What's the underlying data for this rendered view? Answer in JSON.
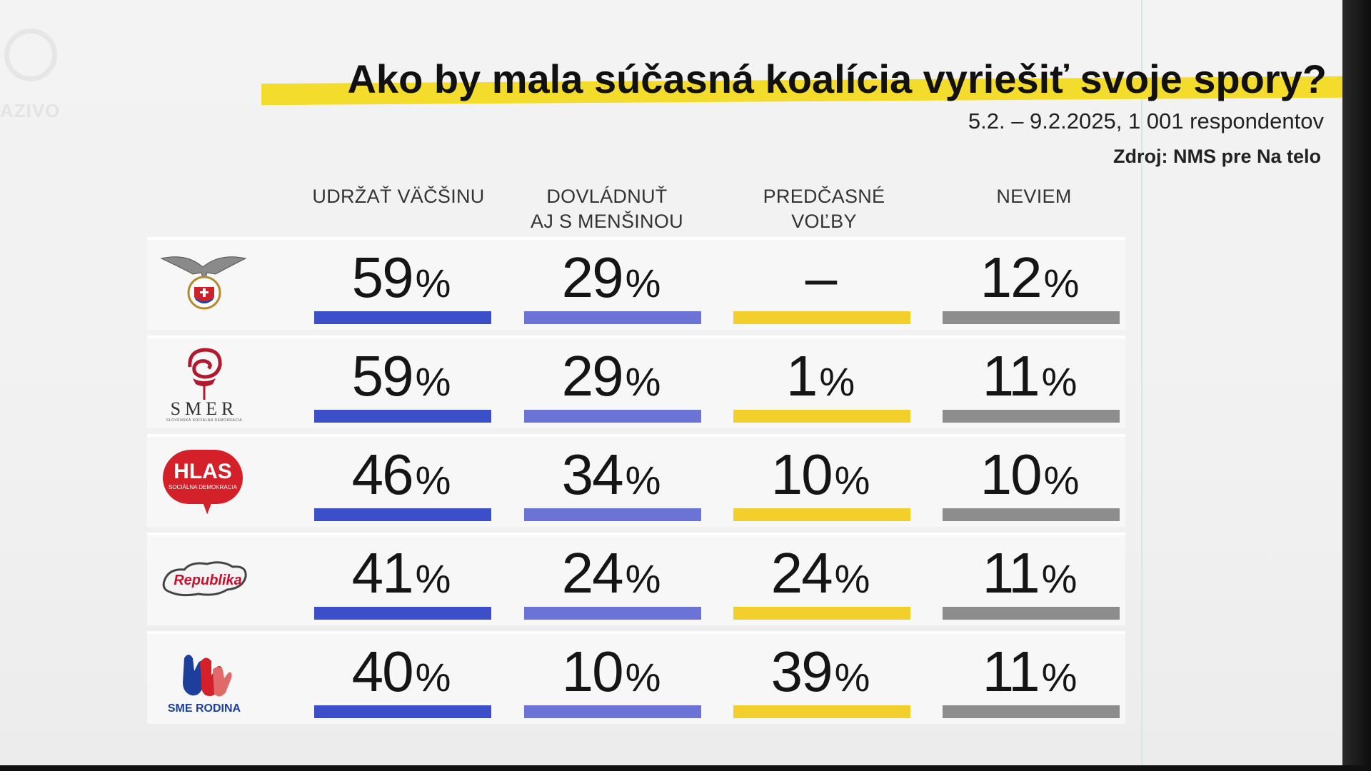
{
  "watermark": {
    "text": "AZIVO"
  },
  "chart_data": {
    "type": "table",
    "title": "Ako by mala súčasná koalícia vyriešiť svoje spory?",
    "subtitle": "5.2. – 9.2.2025, 1 001 respondentov",
    "source": "Zdroj: NMS pre Na telo",
    "columns": [
      "UDRŽAŤ VÄČŠINU",
      "DOVLÁDNUŤ\nAJ S MENŠINOU",
      "PREDČASNÉ\nVOĽBY",
      "NEVIEM"
    ],
    "column_colors": [
      "#3b4fc9",
      "#6b73d6",
      "#f2cf2a",
      "#8d8d8d"
    ],
    "rows": [
      {
        "party_logo": "sns-eagle-logo",
        "values": [
          59,
          29,
          null,
          12
        ]
      },
      {
        "party_logo": "smer-rose-logo",
        "logo_text": "SMER",
        "logo_subtext": "SLOVENSKÁ SOCIÁLNA DEMOKRACIA",
        "values": [
          59,
          29,
          1,
          11
        ]
      },
      {
        "party_logo": "hlas-bubble-logo",
        "logo_text": "HLAS",
        "logo_subtext": "SOCIÁLNA DEMOKRACIA",
        "values": [
          46,
          34,
          10,
          10
        ]
      },
      {
        "party_logo": "republika-map-logo",
        "logo_text": "Republika",
        "values": [
          41,
          24,
          24,
          11
        ]
      },
      {
        "party_logo": "sme-rodina-hands-logo",
        "logo_text": "SME RODINA",
        "values": [
          40,
          10,
          39,
          11
        ]
      }
    ],
    "unit": "%",
    "missing_value_text": "–"
  }
}
